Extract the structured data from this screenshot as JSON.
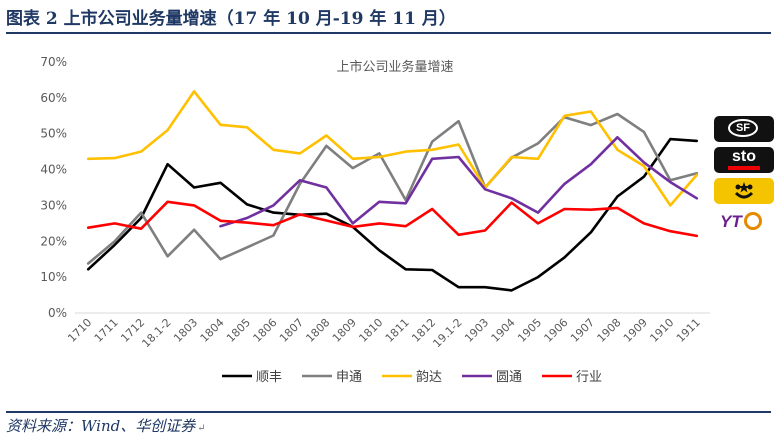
{
  "header": {
    "title": "图表 2  上市公司业务量增速（17 年 10 月-19 年 11 月）"
  },
  "footer": {
    "source": "资料来源：Wind、华创证券"
  },
  "logos": [
    {
      "name": "sf-logo",
      "text": "SF"
    },
    {
      "name": "sto-logo",
      "text": "sto"
    },
    {
      "name": "yunda-logo",
      "text": ""
    },
    {
      "name": "yto-logo",
      "text": "YT"
    }
  ],
  "chart_data": {
    "type": "line",
    "title": "上市公司业务量增速",
    "xlabel": "",
    "ylabel": "",
    "ylim": [
      0,
      70
    ],
    "yticks": [
      "0%",
      "10%",
      "20%",
      "30%",
      "40%",
      "50%",
      "60%",
      "70%"
    ],
    "grid": false,
    "legend_position": "bottom",
    "categories": [
      "1710",
      "1711",
      "1712",
      "18.1-2",
      "1803",
      "1804",
      "1805",
      "1806",
      "1807",
      "1808",
      "1809",
      "1810",
      "1811",
      "1812",
      "19.1-2",
      "1903",
      "1904",
      "1905",
      "1906",
      "1907",
      "1908",
      "1909",
      "1910",
      "1911"
    ],
    "series": [
      {
        "name": "顺丰",
        "color": "#000000",
        "values": [
          12.2,
          19.0,
          26.5,
          41.5,
          35.0,
          36.3,
          30.3,
          28.0,
          27.4,
          27.7,
          24.0,
          17.5,
          12.2,
          12.0,
          7.2,
          7.2,
          6.3,
          10.0,
          15.5,
          22.5,
          32.5,
          38.0,
          48.5,
          48.0
        ]
      },
      {
        "name": "申通",
        "color": "#7f7f7f",
        "values": [
          13.8,
          20.0,
          28.0,
          15.8,
          23.2,
          15.0,
          18.3,
          21.6,
          36.0,
          46.6,
          40.4,
          44.5,
          31.5,
          47.8,
          53.5,
          35.0,
          43.3,
          47.3,
          54.6,
          52.4,
          55.5,
          50.5,
          37.0,
          39.0
        ]
      },
      {
        "name": "韵达",
        "color": "#ffc000",
        "values": [
          43.0,
          43.2,
          45.0,
          51.0,
          61.8,
          52.5,
          51.8,
          45.5,
          44.5,
          49.5,
          43.0,
          43.5,
          45.0,
          45.5,
          47.0,
          35.0,
          43.5,
          43.0,
          55.0,
          56.2,
          45.5,
          41.0,
          30.0,
          38.5
        ]
      },
      {
        "name": "圆通",
        "color": "#7030a0",
        "values": [
          null,
          null,
          null,
          null,
          null,
          24.2,
          26.5,
          30.0,
          37.0,
          35.0,
          25.0,
          31.0,
          30.6,
          43.0,
          43.5,
          34.5,
          32.0,
          28.0,
          36.0,
          41.5,
          49.0,
          42.0,
          36.5,
          32.0
        ]
      },
      {
        "name": "行业",
        "color": "#ff0000",
        "values": [
          23.8,
          25.0,
          23.5,
          31.0,
          30.0,
          25.7,
          25.2,
          24.5,
          27.5,
          25.8,
          24.0,
          25.0,
          24.2,
          29.0,
          21.8,
          23.0,
          30.8,
          25.0,
          29.0,
          28.8,
          29.3,
          25.0,
          22.8,
          21.5
        ]
      }
    ]
  }
}
